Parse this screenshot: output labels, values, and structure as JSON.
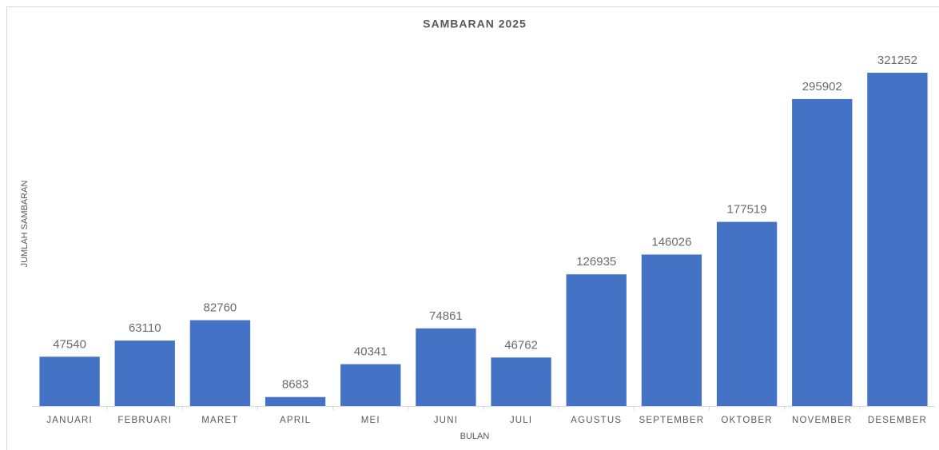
{
  "chart_data": {
    "type": "bar",
    "title": "SAMBARAN 2025",
    "x_label": "BULAN",
    "y_label": "JUMLAH SAMBARAN",
    "categories": [
      "JANUARI",
      "FEBRUARI",
      "MARET",
      "APRIL",
      "MEI",
      "JUNI",
      "JULI",
      "AGUSTUS",
      "SEPTEMBER",
      "OKTOBER",
      "NOVEMBER",
      "DESEMBER"
    ],
    "values": [
      47540,
      63110,
      82760,
      8683,
      40341,
      74861,
      46762,
      126935,
      146026,
      177519,
      295902,
      321252
    ],
    "color": "#4472c4",
    "data_labels": true
  }
}
